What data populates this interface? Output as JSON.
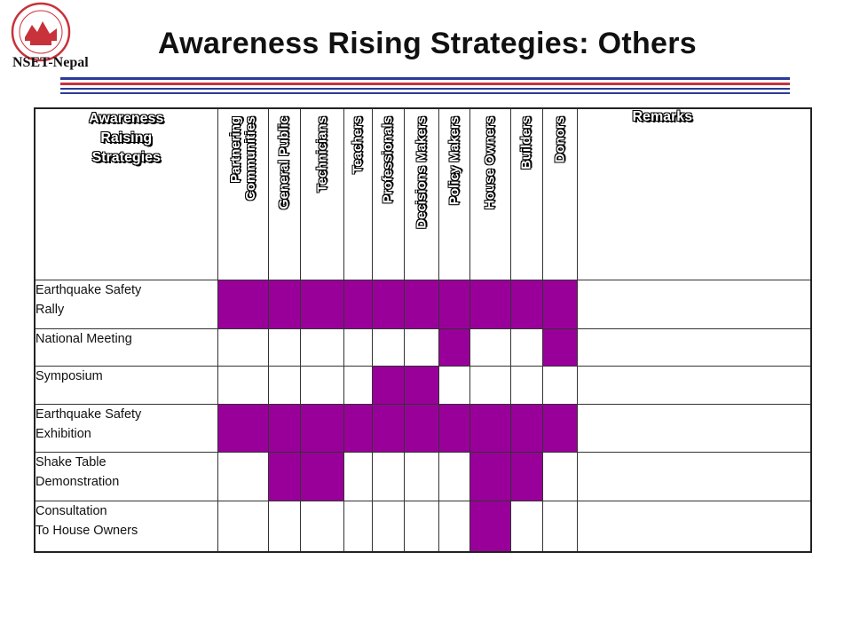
{
  "header": {
    "org": "NSET-Nepal",
    "title": "Awareness Rising Strategies: Others"
  },
  "colors": {
    "filled": "#990099",
    "rule_blue": "#2a3a9c",
    "rule_red": "#c8323a"
  },
  "table": {
    "strategy_header": "Awareness Raising Strategies",
    "columns": [
      "Partnering Communities",
      "General Public",
      "Technicians",
      "Teachers",
      "Professionals",
      "Decisions Makers",
      "Policy Makers",
      "House Owners",
      "Builders",
      "Donors"
    ],
    "remarks_header": "Remarks",
    "rows": [
      {
        "name_lines": [
          "Earthquake Safety",
          "Rally"
        ],
        "marks": [
          1,
          1,
          1,
          1,
          1,
          1,
          1,
          1,
          1,
          1
        ]
      },
      {
        "name_lines": [
          "National Meeting"
        ],
        "marks": [
          0,
          0,
          0,
          0,
          0,
          0,
          1,
          0,
          0,
          1
        ]
      },
      {
        "name_lines": [
          "Symposium"
        ],
        "marks": [
          0,
          0,
          0,
          0,
          1,
          1,
          0,
          0,
          0,
          0
        ]
      },
      {
        "name_lines": [
          "Earthquake Safety",
          "Exhibition"
        ],
        "marks": [
          1,
          1,
          1,
          1,
          1,
          1,
          1,
          1,
          1,
          1
        ]
      },
      {
        "name_lines": [
          "Shake Table",
          "Demonstration"
        ],
        "marks": [
          0,
          1,
          1,
          0,
          0,
          0,
          0,
          1,
          1,
          0
        ]
      },
      {
        "name_lines": [
          "Consultation",
          "To House Owners"
        ],
        "marks": [
          0,
          0,
          0,
          0,
          0,
          0,
          0,
          1,
          0,
          0
        ]
      }
    ]
  }
}
